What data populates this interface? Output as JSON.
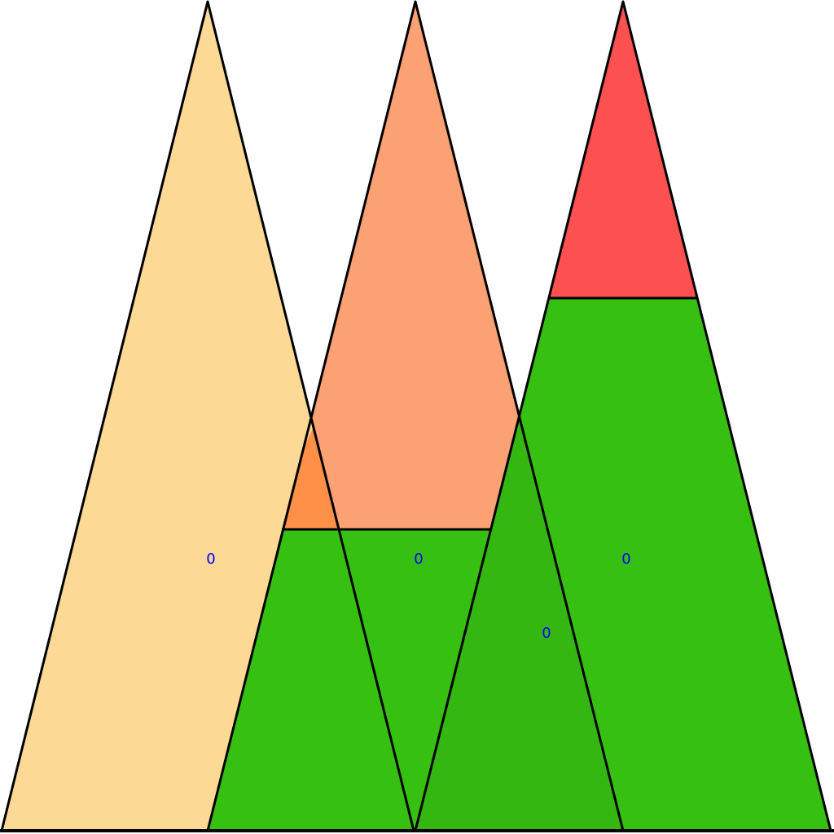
{
  "colors": {
    "background": "#ffffff",
    "outline": "#000000",
    "label": "#0000ff",
    "peak_1": "#fdd894",
    "peak_2": "#fca173",
    "peak_3": "#fd5151",
    "fill_green": "#36c012",
    "overlap_orange": "#fe9147"
  },
  "labels": {
    "peak_1": "0",
    "peak_2": "0",
    "peak_3": "0",
    "overlap": "0"
  }
}
